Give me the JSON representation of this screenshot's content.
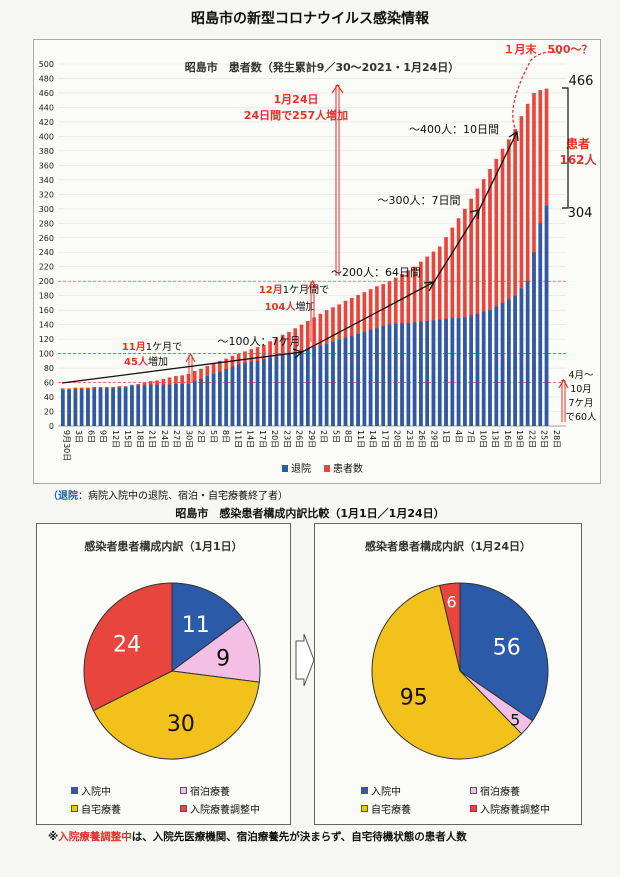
{
  "page": {
    "title": "昭島市の新型コロナウイルス感染情報"
  },
  "bar_chart": {
    "title": "昭島市　患者数（発生累計9／30～2021・1月24日）",
    "top_annotation": "１月末　500～？",
    "total_label": "466",
    "retired_label": "304",
    "patients_label_line1": "患者",
    "patients_label_line2": "162人",
    "ann_jan24_line1": "1月24日",
    "ann_jan24_line2": "24日間で257人増加",
    "ann_400": "～400人：10日間",
    "ann_300": "～300人：7日間",
    "ann_200": "～200人：64日間",
    "ann_100": "～100人：7ケ月",
    "ann_dec_line1_red": "12月",
    "ann_dec_line1_black": "1ケ月間で",
    "ann_dec_line2_red": "104人",
    "ann_dec_line2_black": "増加",
    "ann_nov_line1_red": "11月",
    "ann_nov_line1_black": "1ケ月で",
    "ann_nov_line2_red": "45人",
    "ann_nov_line2_black": "増加",
    "ann_apr_lines": [
      "4月～",
      "10月",
      "7ケ月",
      "で60人"
    ],
    "legend": [
      "退院",
      "患者数"
    ]
  },
  "retire_note": {
    "label": "（退院",
    "text": "：病院入院中の退院、宿泊・自宅療養終了者）"
  },
  "compare": {
    "title": "昭島市　感染患者構成内訳比較（1月1日／1月24日）",
    "left_title": "感染者患者構成内訳（1月1日）",
    "right_title": "感染者患者構成内訳（1月24日）",
    "legend": [
      "入院中",
      "宿泊療養",
      "自宅療養",
      "入院療養調整中"
    ]
  },
  "footnote": {
    "mark": "※",
    "red": "入院療養調整中",
    "rest": "は、入院先医療機関、宿泊療養先が決まらず、自宅待機状態の患者人数"
  },
  "colors": {
    "blue": "#2a5aa8",
    "red": "#e8453c",
    "pink": "#f3bfe4",
    "yellow": "#f2c11c"
  },
  "chart_data": [
    {
      "type": "bar",
      "title": "昭島市　患者数（発生累計9／30～2021・1月24日）",
      "ylim": [
        0,
        500
      ],
      "ytick_step": 20,
      "x_tick_labels": [
        "9月30日",
        "3日",
        "6日",
        "9日",
        "12日",
        "15日",
        "18日",
        "21日",
        "24日",
        "27日",
        "30日",
        "2日",
        "5日",
        "8日",
        "11日",
        "14日",
        "17日",
        "20日",
        "23日",
        "26日",
        "29日",
        "2日",
        "5日",
        "8日",
        "11日",
        "14日",
        "17日",
        "20日",
        "23日",
        "26日",
        "29日",
        "1日",
        "4日",
        "7日",
        "10日",
        "13日",
        "16日",
        "19日",
        "22日",
        "25日",
        "28日"
      ],
      "legend_position": "bottom",
      "anchors_total": [
        [
          0,
          52
        ],
        [
          10,
          55
        ],
        [
          12,
          58
        ],
        [
          20,
          72
        ],
        [
          24,
          86
        ],
        [
          28,
          100
        ],
        [
          32,
          112
        ],
        [
          36,
          130
        ],
        [
          42,
          160
        ],
        [
          48,
          185
        ],
        [
          52,
          200
        ],
        [
          56,
          220
        ],
        [
          60,
          248
        ],
        [
          64,
          300
        ],
        [
          68,
          355
        ],
        [
          72,
          410
        ],
        [
          74,
          445
        ],
        [
          75,
          460
        ],
        [
          76,
          464
        ],
        [
          77,
          466
        ]
      ],
      "anchors_retired": [
        [
          0,
          50
        ],
        [
          10,
          53
        ],
        [
          12,
          56
        ],
        [
          20,
          58
        ],
        [
          24,
          72
        ],
        [
          28,
          85
        ],
        [
          32,
          92
        ],
        [
          36,
          100
        ],
        [
          42,
          113
        ],
        [
          48,
          130
        ],
        [
          52,
          140
        ],
        [
          56,
          143
        ],
        [
          60,
          147
        ],
        [
          64,
          150
        ],
        [
          68,
          160
        ],
        [
          72,
          180
        ],
        [
          74,
          200
        ],
        [
          75,
          240
        ],
        [
          76,
          280
        ],
        [
          77,
          304
        ]
      ],
      "n_bars": 78,
      "series": [
        {
          "name": "退院",
          "color": "#2a5aa8"
        },
        {
          "name": "患者数",
          "color": "#e8453c"
        }
      ]
    },
    {
      "type": "pie",
      "title": "感染者患者構成内訳（1月1日）",
      "labels": [
        "入院中",
        "宿泊療養",
        "自宅療養",
        "入院療養調整中"
      ],
      "values": [
        11,
        9,
        30,
        24
      ],
      "colors": [
        "#2a5aa8",
        "#f3bfe4",
        "#f2c11c",
        "#e8453c"
      ],
      "label_colors": [
        "#ffffff",
        "#111111",
        "#111111",
        "#ffffff"
      ]
    },
    {
      "type": "pie",
      "title": "感染者患者構成内訳（1月24日）",
      "labels": [
        "入院中",
        "宿泊療養",
        "自宅療養",
        "入院療養調整中"
      ],
      "values": [
        56,
        5,
        95,
        6
      ],
      "colors": [
        "#2a5aa8",
        "#f3bfe4",
        "#f2c11c",
        "#e8453c"
      ],
      "label_colors": [
        "#ffffff",
        "#111111",
        "#111111",
        "#ffffff"
      ]
    }
  ]
}
